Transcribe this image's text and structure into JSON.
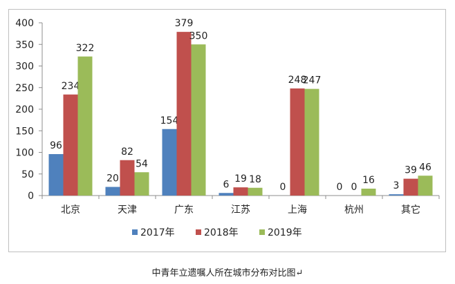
{
  "caption": "中青年立遗嘱人所在城市分布对比图↵",
  "chart_data": {
    "type": "bar",
    "categories": [
      "北京",
      "天津",
      "广东",
      "江苏",
      "上海",
      "杭州",
      "其它"
    ],
    "series": [
      {
        "name": "2017年",
        "color": "#4f81bd",
        "values": [
          96,
          20,
          154,
          6,
          0,
          0,
          3
        ]
      },
      {
        "name": "2018年",
        "color": "#c0504d",
        "values": [
          234,
          82,
          379,
          19,
          248,
          0,
          39
        ]
      },
      {
        "name": "2019年",
        "color": "#9bbb59",
        "values": [
          322,
          54,
          350,
          18,
          247,
          16,
          46
        ]
      }
    ],
    "yticks": [
      0,
      50,
      100,
      150,
      200,
      250,
      300,
      350,
      400
    ],
    "ylim": [
      0,
      400
    ],
    "title": "",
    "xlabel": "",
    "ylabel": "",
    "grid": false,
    "legend_position": "bottom"
  }
}
